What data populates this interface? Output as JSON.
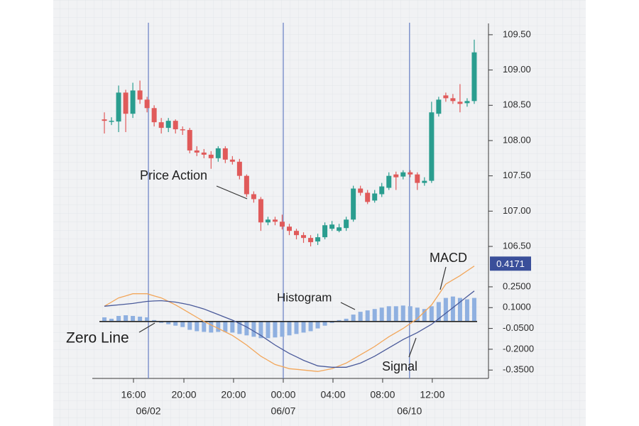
{
  "chart_data": [
    {
      "type": "candlestick",
      "up_color": "#2a9d8f",
      "down_color": "#e05a5a",
      "open": [
        108.3,
        108.27,
        108.27,
        108.68,
        108.38,
        108.71,
        108.58,
        108.46,
        108.26,
        108.18,
        108.28,
        108.16,
        108.15,
        107.86,
        107.83,
        107.8,
        107.75,
        107.89,
        107.73,
        107.7,
        107.5,
        107.24,
        107.17,
        106.84,
        106.88,
        106.85,
        106.78,
        106.72,
        106.66,
        106.62,
        106.57,
        106.63,
        106.75,
        106.72,
        106.76,
        106.88,
        107.32,
        107.26,
        107.15,
        107.24,
        107.33,
        107.52,
        107.49,
        107.55,
        107.52,
        107.4,
        107.43,
        108.38,
        108.64,
        108.6,
        108.55,
        108.53,
        108.56
      ],
      "high": [
        108.4,
        108.33,
        108.78,
        108.72,
        108.82,
        108.85,
        108.62,
        108.5,
        108.32,
        108.32,
        108.3,
        108.2,
        108.18,
        107.92,
        107.88,
        107.85,
        107.92,
        107.92,
        107.78,
        107.74,
        107.52,
        107.28,
        107.2,
        106.92,
        106.92,
        106.95,
        106.82,
        106.75,
        106.7,
        106.66,
        106.68,
        106.84,
        106.86,
        106.82,
        106.92,
        107.36,
        107.36,
        107.3,
        107.3,
        107.4,
        107.55,
        107.56,
        107.58,
        107.58,
        107.55,
        107.48,
        108.55,
        108.62,
        108.68,
        108.66,
        108.8,
        108.6,
        109.43
      ],
      "low": [
        108.1,
        108.22,
        108.12,
        108.12,
        108.32,
        108.52,
        108.4,
        108.2,
        108.1,
        108.12,
        108.1,
        108.08,
        107.82,
        107.78,
        107.75,
        107.6,
        107.7,
        107.68,
        107.66,
        107.45,
        107.2,
        107.12,
        106.72,
        106.8,
        106.8,
        106.74,
        106.66,
        106.6,
        106.55,
        106.5,
        106.52,
        106.6,
        106.72,
        106.7,
        106.72,
        106.85,
        107.22,
        107.1,
        107.12,
        107.2,
        107.3,
        107.3,
        107.45,
        107.48,
        107.3,
        107.36,
        107.4,
        108.34,
        108.55,
        108.52,
        108.4,
        108.48,
        108.52
      ],
      "close": [
        108.28,
        108.28,
        108.68,
        108.38,
        108.71,
        108.58,
        108.46,
        108.26,
        108.18,
        108.28,
        108.16,
        108.15,
        107.86,
        107.83,
        107.8,
        107.75,
        107.89,
        107.73,
        107.7,
        107.5,
        107.24,
        107.17,
        106.84,
        106.88,
        106.85,
        106.78,
        106.72,
        106.66,
        106.62,
        106.56,
        106.63,
        106.8,
        106.81,
        106.77,
        106.88,
        107.32,
        107.26,
        107.13,
        107.25,
        107.35,
        107.5,
        107.48,
        107.55,
        107.52,
        107.4,
        107.43,
        108.4,
        108.58,
        108.6,
        108.56,
        108.52,
        108.56,
        109.25
      ],
      "xlim": [
        -0.7,
        54.1
      ],
      "ylim": [
        106.42,
        109.64
      ],
      "yticks": [
        {
          "value": 109.5,
          "label": "109.50"
        },
        {
          "value": 109,
          "label": "109.00"
        },
        {
          "value": 108.5,
          "label": "108.50"
        },
        {
          "value": 108,
          "label": "108.00"
        },
        {
          "value": 107.5,
          "label": "107.50"
        },
        {
          "value": 107,
          "label": "107.00"
        },
        {
          "value": 106.5,
          "label": "106.50"
        }
      ],
      "annotations": [
        "Price Action"
      ]
    },
    {
      "type": "macd",
      "series": [
        {
          "kind": "bar",
          "color": "#8fb0e0",
          "values": [
            0.03,
            0.02,
            0.04,
            0.045,
            0.04,
            0.035,
            0.03,
            0.01,
            -0.01,
            -0.02,
            -0.03,
            -0.04,
            -0.06,
            -0.07,
            -0.075,
            -0.08,
            -0.075,
            -0.075,
            -0.08,
            -0.09,
            -0.1,
            -0.11,
            -0.12,
            -0.12,
            -0.115,
            -0.11,
            -0.1,
            -0.09,
            -0.08,
            -0.07,
            -0.05,
            -0.03,
            -0.01,
            0.01,
            0.02,
            0.05,
            0.07,
            0.08,
            0.09,
            0.1,
            0.11,
            0.11,
            0.115,
            0.11,
            0.1,
            0.09,
            0.11,
            0.14,
            0.17,
            0.18,
            0.17,
            0.16,
            0.17
          ]
        },
        {
          "kind": "line",
          "color": "#f2a65a",
          "values": [
            0.11,
            0.14,
            0.17,
            0.185,
            0.2,
            0.2,
            0.2,
            0.185,
            0.17,
            0.145,
            0.12,
            0.09,
            0.06,
            0.03,
            0.0,
            -0.025,
            -0.05,
            -0.075,
            -0.1,
            -0.135,
            -0.17,
            -0.21,
            -0.25,
            -0.28,
            -0.31,
            -0.325,
            -0.34,
            -0.345,
            -0.35,
            -0.355,
            -0.36,
            -0.35,
            -0.34,
            -0.32,
            -0.3,
            -0.27,
            -0.24,
            -0.21,
            -0.18,
            -0.145,
            -0.11,
            -0.08,
            -0.05,
            -0.015,
            0.02,
            0.07,
            0.12,
            0.195,
            0.27,
            0.3,
            0.33,
            0.365,
            0.4
          ]
        },
        {
          "kind": "line",
          "color": "#4a5a9a",
          "values": [
            0.11,
            0.115,
            0.12,
            0.125,
            0.13,
            0.138,
            0.145,
            0.148,
            0.15,
            0.145,
            0.14,
            0.13,
            0.12,
            0.105,
            0.09,
            0.07,
            0.05,
            0.03,
            0.01,
            -0.015,
            -0.04,
            -0.07,
            -0.1,
            -0.135,
            -0.17,
            -0.2,
            -0.23,
            -0.255,
            -0.28,
            -0.3,
            -0.32,
            -0.325,
            -0.33,
            -0.33,
            -0.33,
            -0.315,
            -0.3,
            -0.275,
            -0.25,
            -0.22,
            -0.19,
            -0.16,
            -0.13,
            -0.105,
            -0.08,
            -0.05,
            -0.02,
            0.02,
            0.06,
            0.1,
            0.14,
            0.18,
            0.22
          ]
        }
      ],
      "zero_line": true,
      "current_value": 0.4171,
      "current_value_color": "#3a4f9a",
      "xlim": [
        -0.7,
        54.1
      ],
      "ylim": [
        -0.395,
        0.475
      ],
      "yticks": [
        {
          "value": 0.25,
          "label": "0.2500"
        },
        {
          "value": 0.1,
          "label": "0.1000"
        },
        {
          "value": -0.05,
          "label": "-0.0500"
        },
        {
          "value": -0.2,
          "label": "-0.2000"
        },
        {
          "value": -0.35,
          "label": "-0.3500"
        }
      ],
      "xticks": [
        {
          "value": 4.09,
          "label": "16:00"
        },
        {
          "value": 11.18,
          "label": "20:00"
        },
        {
          "value": 18.16,
          "label": "20:00"
        },
        {
          "value": 25.15,
          "label": "00:00"
        },
        {
          "value": 32.14,
          "label": "04:00"
        },
        {
          "value": 39.12,
          "label": "08:00"
        },
        {
          "value": 46.1,
          "label": "12:00"
        }
      ],
      "date_markers": [
        {
          "value": 6.19,
          "label": "06/02"
        },
        {
          "value": 25.15,
          "label": "06/07"
        },
        {
          "value": 42.9,
          "label": "06/10"
        }
      ],
      "marker_color": "#6f86c6",
      "annotations": [
        "Histogram",
        "MACD",
        "Zero Line",
        "Signal"
      ]
    }
  ]
}
